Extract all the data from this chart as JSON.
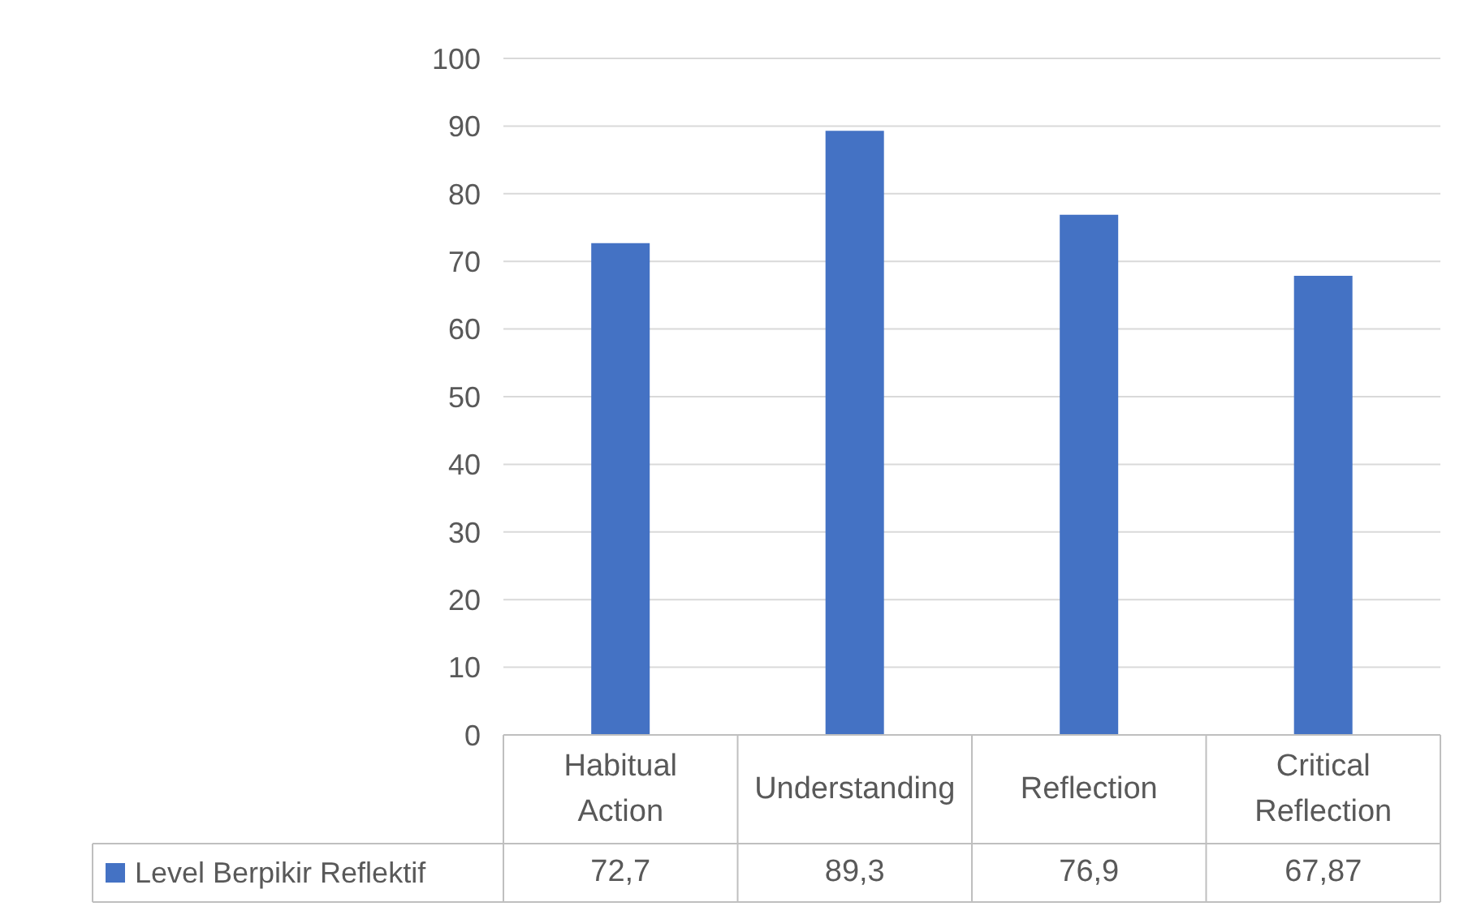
{
  "chart_data": {
    "type": "bar",
    "categories": [
      "Habitual Action",
      "Understanding",
      "Reflection",
      "Critical Reflection"
    ],
    "series": [
      {
        "name": "Level Berpikir Reflektif",
        "color": "#4472c4",
        "values": [
          72.7,
          89.3,
          76.9,
          67.87
        ],
        "value_labels": [
          "72,7",
          "89,3",
          "76,9",
          "67,87"
        ]
      }
    ],
    "ylim": [
      0,
      100
    ],
    "yticks": [
      0,
      10,
      20,
      30,
      40,
      50,
      60,
      70,
      80,
      90,
      100
    ],
    "grid": "y",
    "legend": "bottom"
  }
}
